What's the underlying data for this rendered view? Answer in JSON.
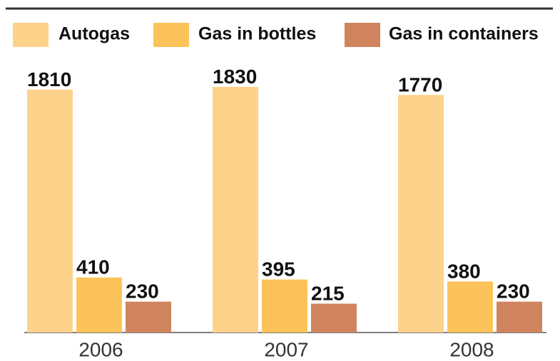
{
  "chart_data": {
    "type": "bar",
    "categories": [
      "2006",
      "2007",
      "2008"
    ],
    "series": [
      {
        "name": "Autogas",
        "color": "#fdd28a",
        "values": [
          1810,
          1830,
          1770
        ]
      },
      {
        "name": "Gas in bottles",
        "color": "#fcc35a",
        "values": [
          410,
          395,
          380
        ]
      },
      {
        "name": "Gas in containers",
        "color": "#d0845e",
        "values": [
          230,
          215,
          230
        ]
      }
    ]
  }
}
